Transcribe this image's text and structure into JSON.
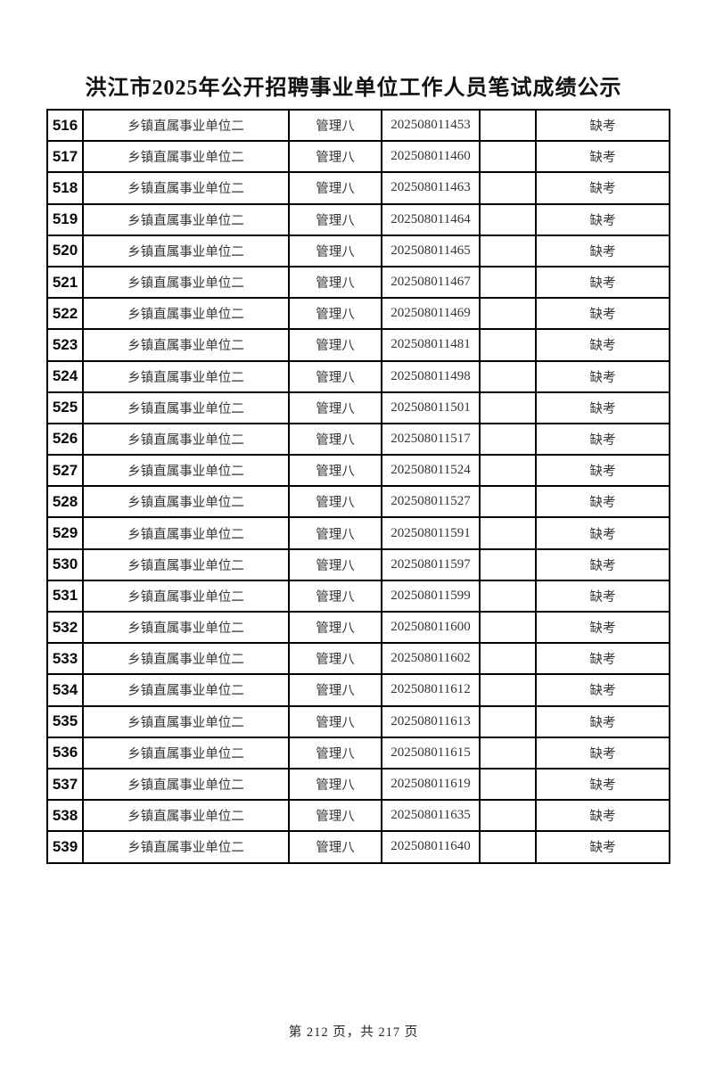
{
  "page": {
    "title": "洪江市2025年公开招聘事业单位工作人员笔试成绩公示",
    "footer": "第 212 页，共 217 页"
  },
  "table": {
    "rows": [
      {
        "no": "516",
        "unit": "乡镇直属事业单位二",
        "position": "管理八",
        "ticket": "202508011453",
        "score": "",
        "status": "缺考"
      },
      {
        "no": "517",
        "unit": "乡镇直属事业单位二",
        "position": "管理八",
        "ticket": "202508011460",
        "score": "",
        "status": "缺考"
      },
      {
        "no": "518",
        "unit": "乡镇直属事业单位二",
        "position": "管理八",
        "ticket": "202508011463",
        "score": "",
        "status": "缺考"
      },
      {
        "no": "519",
        "unit": "乡镇直属事业单位二",
        "position": "管理八",
        "ticket": "202508011464",
        "score": "",
        "status": "缺考"
      },
      {
        "no": "520",
        "unit": "乡镇直属事业单位二",
        "position": "管理八",
        "ticket": "202508011465",
        "score": "",
        "status": "缺考"
      },
      {
        "no": "521",
        "unit": "乡镇直属事业单位二",
        "position": "管理八",
        "ticket": "202508011467",
        "score": "",
        "status": "缺考"
      },
      {
        "no": "522",
        "unit": "乡镇直属事业单位二",
        "position": "管理八",
        "ticket": "202508011469",
        "score": "",
        "status": "缺考"
      },
      {
        "no": "523",
        "unit": "乡镇直属事业单位二",
        "position": "管理八",
        "ticket": "202508011481",
        "score": "",
        "status": "缺考"
      },
      {
        "no": "524",
        "unit": "乡镇直属事业单位二",
        "position": "管理八",
        "ticket": "202508011498",
        "score": "",
        "status": "缺考"
      },
      {
        "no": "525",
        "unit": "乡镇直属事业单位二",
        "position": "管理八",
        "ticket": "202508011501",
        "score": "",
        "status": "缺考"
      },
      {
        "no": "526",
        "unit": "乡镇直属事业单位二",
        "position": "管理八",
        "ticket": "202508011517",
        "score": "",
        "status": "缺考"
      },
      {
        "no": "527",
        "unit": "乡镇直属事业单位二",
        "position": "管理八",
        "ticket": "202508011524",
        "score": "",
        "status": "缺考"
      },
      {
        "no": "528",
        "unit": "乡镇直属事业单位二",
        "position": "管理八",
        "ticket": "202508011527",
        "score": "",
        "status": "缺考"
      },
      {
        "no": "529",
        "unit": "乡镇直属事业单位二",
        "position": "管理八",
        "ticket": "202508011591",
        "score": "",
        "status": "缺考"
      },
      {
        "no": "530",
        "unit": "乡镇直属事业单位二",
        "position": "管理八",
        "ticket": "202508011597",
        "score": "",
        "status": "缺考"
      },
      {
        "no": "531",
        "unit": "乡镇直属事业单位二",
        "position": "管理八",
        "ticket": "202508011599",
        "score": "",
        "status": "缺考"
      },
      {
        "no": "532",
        "unit": "乡镇直属事业单位二",
        "position": "管理八",
        "ticket": "202508011600",
        "score": "",
        "status": "缺考"
      },
      {
        "no": "533",
        "unit": "乡镇直属事业单位二",
        "position": "管理八",
        "ticket": "202508011602",
        "score": "",
        "status": "缺考"
      },
      {
        "no": "534",
        "unit": "乡镇直属事业单位二",
        "position": "管理八",
        "ticket": "202508011612",
        "score": "",
        "status": "缺考"
      },
      {
        "no": "535",
        "unit": "乡镇直属事业单位二",
        "position": "管理八",
        "ticket": "202508011613",
        "score": "",
        "status": "缺考"
      },
      {
        "no": "536",
        "unit": "乡镇直属事业单位二",
        "position": "管理八",
        "ticket": "202508011615",
        "score": "",
        "status": "缺考"
      },
      {
        "no": "537",
        "unit": "乡镇直属事业单位二",
        "position": "管理八",
        "ticket": "202508011619",
        "score": "",
        "status": "缺考"
      },
      {
        "no": "538",
        "unit": "乡镇直属事业单位二",
        "position": "管理八",
        "ticket": "202508011635",
        "score": "",
        "status": "缺考"
      },
      {
        "no": "539",
        "unit": "乡镇直属事业单位二",
        "position": "管理八",
        "ticket": "202508011640",
        "score": "",
        "status": "缺考"
      }
    ]
  }
}
